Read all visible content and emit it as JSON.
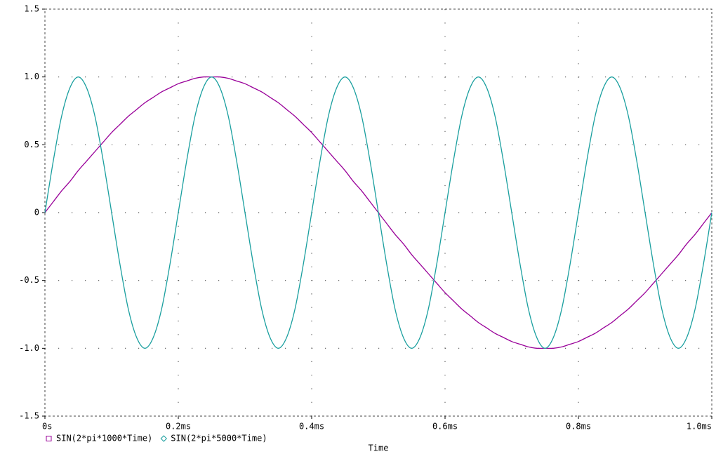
{
  "chart_data": {
    "type": "line",
    "xlabel": "Time",
    "x": [
      0,
      0.0125,
      0.025,
      0.0375,
      0.05,
      0.0625,
      0.075,
      0.0875,
      0.1,
      0.1125,
      0.125,
      0.1375,
      0.15,
      0.1625,
      0.175,
      0.1875,
      0.2,
      0.2125,
      0.225,
      0.2375,
      0.25,
      0.2625,
      0.275,
      0.2875,
      0.3,
      0.3125,
      0.325,
      0.3375,
      0.35,
      0.3625,
      0.375,
      0.3875,
      0.4,
      0.4125,
      0.425,
      0.4375,
      0.45,
      0.4625,
      0.475,
      0.4875,
      0.5,
      0.5125,
      0.525,
      0.5375,
      0.55,
      0.5625,
      0.575,
      0.5875,
      0.6,
      0.6125,
      0.625,
      0.6375,
      0.65,
      0.6625,
      0.675,
      0.6875,
      0.7,
      0.7125,
      0.725,
      0.7375,
      0.75,
      0.7625,
      0.775,
      0.7875,
      0.8,
      0.8125,
      0.825,
      0.8375,
      0.85,
      0.8625,
      0.875,
      0.8875,
      0.9,
      0.9125,
      0.925,
      0.9375,
      0.95,
      0.9625,
      0.975,
      0.9875,
      1
    ],
    "series": [
      {
        "name": "SIN(2*pi*1000*Time)",
        "color": "#990099",
        "marker": "square",
        "values": [
          0,
          0.08,
          0.16,
          0.23,
          0.31,
          0.38,
          0.45,
          0.52,
          0.59,
          0.65,
          0.71,
          0.76,
          0.81,
          0.85,
          0.89,
          0.92,
          0.95,
          0.97,
          0.99,
          1,
          1,
          1,
          0.99,
          0.97,
          0.95,
          0.92,
          0.89,
          0.85,
          0.81,
          0.76,
          0.71,
          0.65,
          0.59,
          0.52,
          0.45,
          0.38,
          0.31,
          0.23,
          0.16,
          0.08,
          0,
          -0.08,
          -0.16,
          -0.23,
          -0.31,
          -0.38,
          -0.45,
          -0.52,
          -0.59,
          -0.65,
          -0.71,
          -0.76,
          -0.81,
          -0.85,
          -0.89,
          -0.92,
          -0.95,
          -0.97,
          -0.99,
          -1,
          -1,
          -1,
          -0.99,
          -0.97,
          -0.95,
          -0.92,
          -0.89,
          -0.85,
          -0.81,
          -0.76,
          -0.71,
          -0.65,
          -0.59,
          -0.52,
          -0.45,
          -0.38,
          -0.31,
          -0.23,
          -0.16,
          -0.08,
          0
        ]
      },
      {
        "name": "SIN(2*pi*5000*Time)",
        "color": "#1a9f9f",
        "marker": "diamond",
        "values": [
          0,
          0.38,
          0.71,
          0.92,
          1,
          0.92,
          0.71,
          0.38,
          0,
          -0.38,
          -0.71,
          -0.92,
          -1,
          -0.92,
          -0.71,
          -0.38,
          0,
          0.38,
          0.71,
          0.92,
          1,
          0.92,
          0.71,
          0.38,
          0,
          -0.38,
          -0.71,
          -0.92,
          -1,
          -0.92,
          -0.71,
          -0.38,
          0,
          0.38,
          0.71,
          0.92,
          1,
          0.92,
          0.71,
          0.38,
          0,
          -0.38,
          -0.71,
          -0.92,
          -1,
          -0.92,
          -0.71,
          -0.38,
          0,
          0.38,
          0.71,
          0.92,
          1,
          0.92,
          0.71,
          0.38,
          0,
          -0.38,
          -0.71,
          -0.92,
          -1,
          -0.92,
          -0.71,
          -0.38,
          0,
          0.38,
          0.71,
          0.92,
          1,
          0.92,
          0.71,
          0.38,
          0,
          -0.38,
          -0.71,
          -0.92,
          -1,
          -0.92,
          -0.71,
          -0.38,
          0
        ]
      }
    ],
    "xlim": [
      0,
      1
    ],
    "xticks": [
      {
        "value": 0,
        "label": "0s"
      },
      {
        "value": 0.2,
        "label": "0.2ms"
      },
      {
        "value": 0.4,
        "label": "0.4ms"
      },
      {
        "value": 0.6,
        "label": "0.6ms"
      },
      {
        "value": 0.8,
        "label": "0.8ms"
      },
      {
        "value": 1,
        "label": "1.0ms"
      }
    ],
    "ylim": [
      -1.5,
      1.5
    ],
    "yticks": [
      -1.5,
      {
        "value": -1,
        "label": "-1.0"
      },
      -0.5,
      0,
      0.5,
      {
        "value": 1,
        "label": "1.0"
      },
      1.5
    ],
    "grid": true
  }
}
